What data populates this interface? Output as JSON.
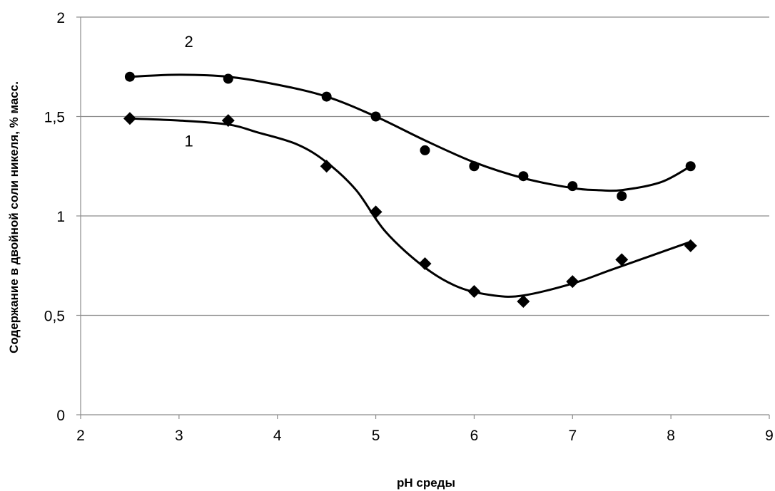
{
  "chart_data": {
    "type": "scatter",
    "title": "",
    "xlabel": "pH среды",
    "ylabel": "Содержание в двойной соли никеля, % масс.",
    "xlim": [
      2,
      9
    ],
    "ylim": [
      0,
      2
    ],
    "x_ticks": [
      2,
      3,
      4,
      5,
      6,
      7,
      8,
      9
    ],
    "y_ticks": [
      0,
      0.5,
      1,
      1.5,
      2
    ],
    "y_tick_labels": [
      "0",
      "0,5",
      "1",
      "1,5",
      "2"
    ],
    "x_tick_labels": [
      "2",
      "3",
      "4",
      "5",
      "6",
      "7",
      "8",
      "9"
    ],
    "grid": "horizontal",
    "legend": "none",
    "series": [
      {
        "label": "1",
        "marker": "diamond",
        "x": [
          2.5,
          3.5,
          4.5,
          5.0,
          5.5,
          6.0,
          6.5,
          7.0,
          7.5,
          8.2
        ],
        "y": [
          1.49,
          1.48,
          1.25,
          1.02,
          0.76,
          0.62,
          0.57,
          0.67,
          0.78,
          0.85
        ],
        "trend": [
          1.49,
          1.48,
          1.46,
          1.42,
          1.36,
          1.27,
          1.13,
          0.92,
          0.74,
          0.64,
          0.6,
          0.6,
          0.66,
          0.73,
          0.8,
          0.87
        ],
        "trend_x": [
          2.5,
          3.0,
          3.5,
          3.8,
          4.2,
          4.5,
          4.8,
          5.1,
          5.5,
          5.85,
          6.2,
          6.5,
          7.0,
          7.4,
          7.8,
          8.2
        ],
        "label_pos": [
          3.1,
          1.35
        ]
      },
      {
        "label": "2",
        "marker": "circle",
        "x": [
          2.5,
          3.5,
          4.5,
          5.0,
          5.5,
          6.0,
          6.5,
          7.0,
          7.5,
          8.2
        ],
        "y": [
          1.7,
          1.69,
          1.6,
          1.5,
          1.33,
          1.25,
          1.2,
          1.15,
          1.1,
          1.25
        ],
        "trend": [
          1.7,
          1.71,
          1.7,
          1.66,
          1.6,
          1.5,
          1.38,
          1.27,
          1.19,
          1.14,
          1.13,
          1.13,
          1.17,
          1.25
        ],
        "trend_x": [
          2.5,
          3.0,
          3.5,
          4.0,
          4.5,
          5.0,
          5.5,
          6.0,
          6.5,
          7.0,
          7.25,
          7.5,
          7.9,
          8.2
        ],
        "label_pos": [
          3.1,
          1.85
        ]
      }
    ]
  }
}
